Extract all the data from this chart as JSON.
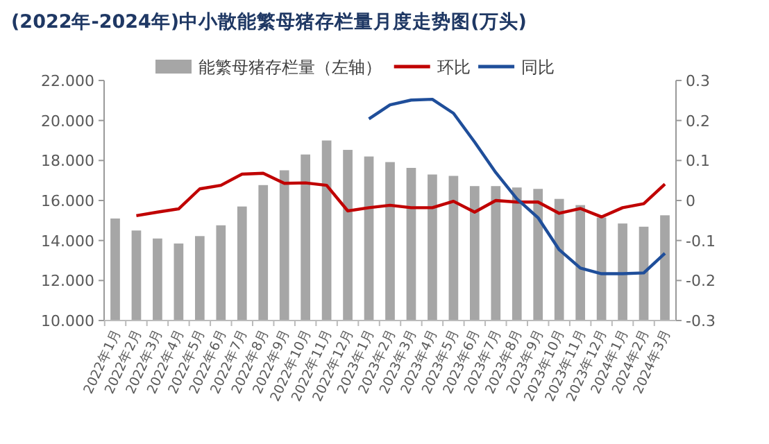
{
  "chart_data": {
    "type": "bar",
    "title": "(2022年-2024年)中小散能繁母猪存栏量月度走势图(万头)",
    "categories": [
      "2022年1月",
      "2022年2月",
      "2022年3月",
      "2022年4月",
      "2022年5月",
      "2022年6月",
      "2022年7月",
      "2022年8月",
      "2022年9月",
      "2022年10月",
      "2022年11月",
      "2022年12月",
      "2023年1月",
      "2023年2月",
      "2023年3月",
      "2023年4月",
      "2023年5月",
      "2023年6月",
      "2023年7月",
      "2023年8月",
      "2023年9月",
      "2023年10月",
      "2023年11月",
      "2023年12月",
      "2024年1月",
      "2024年2月",
      "2024年3月"
    ],
    "series": [
      {
        "name": "能繁母猪存栏量（左轴）",
        "color": "#a6a6a6",
        "values": [
          15.1,
          14.5,
          14.1,
          13.85,
          14.22,
          14.76,
          15.7,
          16.77,
          17.51,
          18.3,
          19.0,
          18.53,
          18.2,
          17.92,
          17.63,
          17.3,
          17.23,
          16.72,
          16.72,
          16.65,
          16.58,
          16.08,
          15.77,
          15.15,
          14.85,
          14.69,
          15.26
        ]
      },
      {
        "name": "环比",
        "type": "line",
        "axis": "y2",
        "color": "#c00000",
        "values": [
          null,
          -0.038,
          -0.029,
          -0.021,
          0.029,
          0.038,
          0.066,
          0.068,
          0.043,
          0.044,
          0.038,
          -0.026,
          -0.018,
          -0.012,
          -0.018,
          -0.018,
          -0.002,
          -0.029,
          0,
          -0.004,
          -0.004,
          -0.032,
          -0.02,
          -0.041,
          -0.018,
          -0.008,
          0.041
        ]
      },
      {
        "name": "同比",
        "type": "line",
        "axis": "y2",
        "color": "#1f4e9a",
        "values": [
          null,
          null,
          null,
          null,
          null,
          null,
          null,
          null,
          null,
          null,
          null,
          null,
          0.204,
          0.239,
          0.251,
          0.253,
          0.218,
          0.146,
          0.07,
          0.004,
          -0.043,
          -0.123,
          -0.169,
          -0.183,
          -0.183,
          -0.181,
          -0.132
        ]
      }
    ],
    "ylim": [
      10,
      22
    ],
    "yticks": [
      {
        "value": 10,
        "label": "10.000"
      },
      {
        "value": 12,
        "label": "12.000"
      },
      {
        "value": 14,
        "label": "14.000"
      },
      {
        "value": 16,
        "label": "16.000"
      },
      {
        "value": 18,
        "label": "18.000"
      },
      {
        "value": 20,
        "label": "20.000"
      },
      {
        "value": 22,
        "label": "22.000"
      }
    ],
    "y2lim": [
      -0.3,
      0.3
    ],
    "y2ticks": [
      -0.3,
      -0.2,
      -0.1,
      0,
      0.1,
      0.2,
      0.3
    ],
    "legend": "top",
    "grid": false,
    "marker": "none",
    "line_style": "solid"
  }
}
